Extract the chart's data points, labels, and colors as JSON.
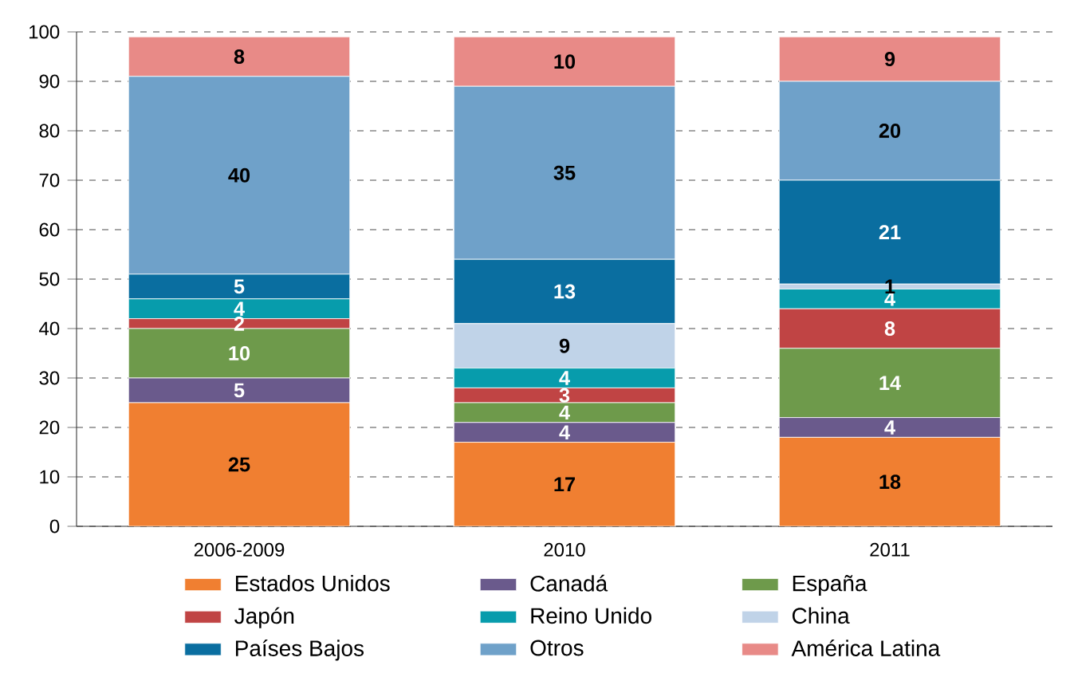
{
  "chart_data": {
    "type": "bar",
    "stacked": true,
    "categories": [
      "2006-2009",
      "2010",
      "2011"
    ],
    "series": [
      {
        "name": "Estados Unidos",
        "color": "#f07f31",
        "values": [
          25,
          17,
          18
        ],
        "value_labels": [
          "25",
          "17",
          "18"
        ]
      },
      {
        "name": "Canadá",
        "color": "#6a5a8c",
        "values": [
          5,
          4,
          4
        ],
        "value_labels": [
          "5",
          "4",
          "4"
        ]
      },
      {
        "name": "España",
        "color": "#6e9a4b",
        "values": [
          10,
          4,
          14
        ],
        "value_labels": [
          "10",
          "4",
          "14"
        ]
      },
      {
        "name": "Japón",
        "color": "#c04444",
        "values": [
          2,
          3,
          8
        ],
        "value_labels": [
          "2",
          "3",
          "8"
        ]
      },
      {
        "name": "Reino Unido",
        "color": "#079cac",
        "values": [
          4,
          4,
          4
        ],
        "value_labels": [
          "4",
          "4",
          "4"
        ]
      },
      {
        "name": "China",
        "color": "#c0d3e8",
        "values": [
          0,
          9,
          1
        ],
        "value_labels": [
          null,
          "9",
          "1"
        ]
      },
      {
        "name": "Países Bajos",
        "color": "#0a6ea0",
        "values": [
          5,
          13,
          21
        ],
        "value_labels": [
          "5",
          "13",
          "21"
        ]
      },
      {
        "name": "Otros",
        "color": "#6fa1c9",
        "values": [
          40,
          35,
          20
        ],
        "value_labels": [
          "40",
          "35",
          "20"
        ]
      },
      {
        "name": "América Latina",
        "color": "#e88a87",
        "values": [
          8,
          10,
          9
        ],
        "value_labels": [
          "8",
          "10",
          "9"
        ]
      }
    ],
    "ylim": [
      0,
      100
    ],
    "yticks": [
      0,
      10,
      20,
      30,
      40,
      50,
      60,
      70,
      80,
      90,
      100
    ],
    "grid": "y",
    "legend": "bottom"
  }
}
